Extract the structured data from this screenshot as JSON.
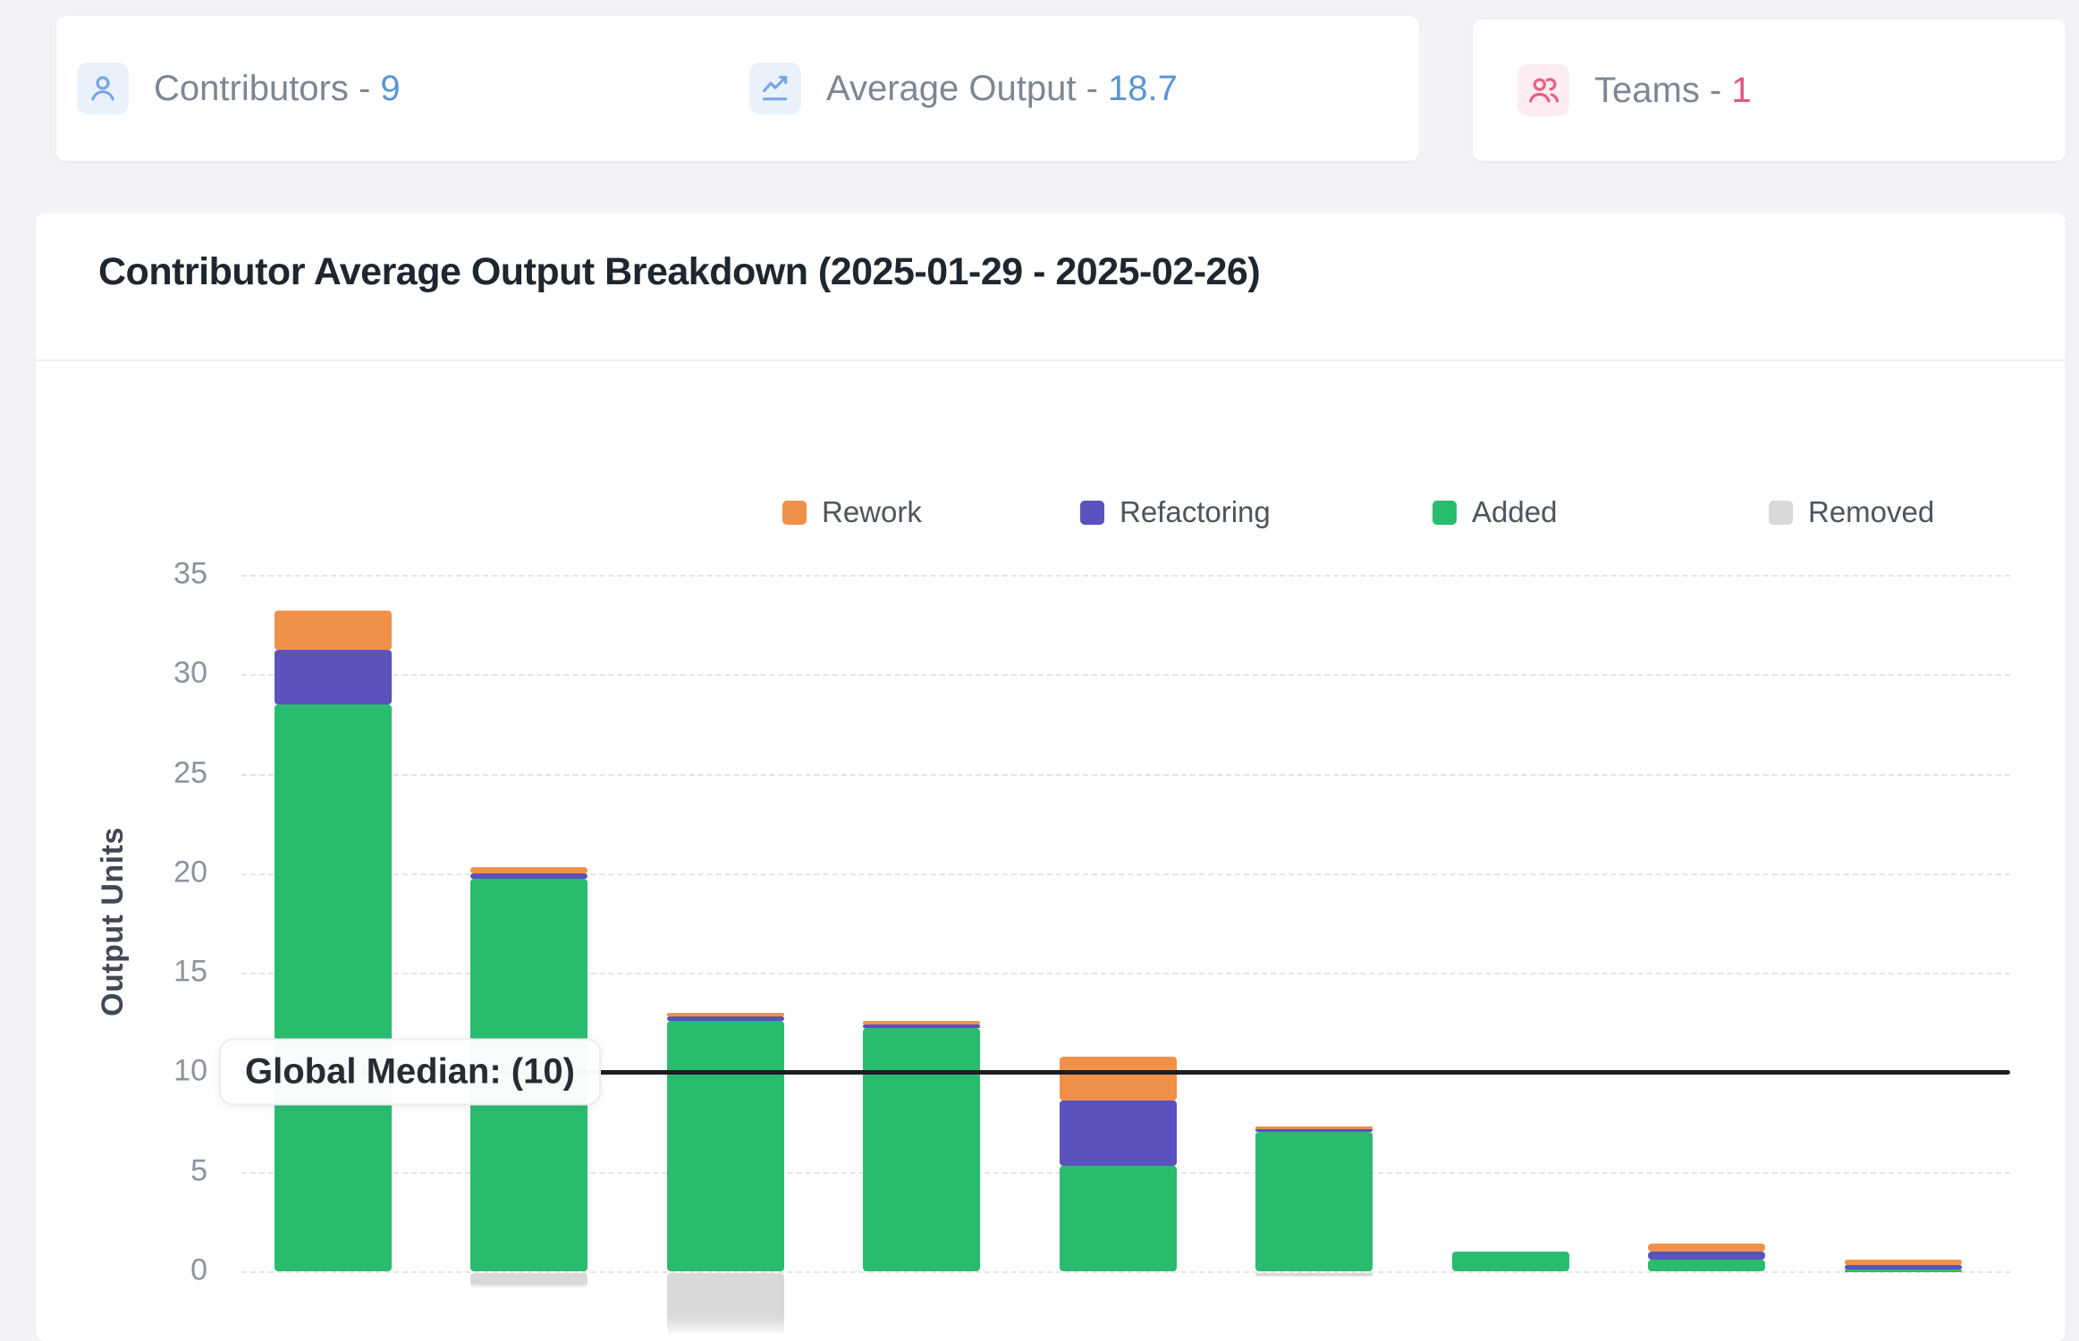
{
  "stat_cards": [
    {
      "label": "Contributors - ",
      "value": "9",
      "value_color": "#5896d6",
      "icon": "user-icon"
    },
    {
      "label": "Average Output - ",
      "value": "18.7",
      "value_color": "#5896d6",
      "icon": "trend-chart-icon"
    },
    {
      "label": "Teams - ",
      "value": "1",
      "value_color": "#e2547e",
      "icon": "team-icon"
    }
  ],
  "chart": {
    "title": "Contributor Average Output Breakdown (2025-01-29 - 2025-02-26)"
  },
  "chart_data": {
    "type": "bar",
    "stacked": true,
    "title": "Contributor Average Output Breakdown (2025-01-29 - 2025-02-26)",
    "ylabel": "Output Units",
    "ylim": [
      -4,
      36
    ],
    "yticks": [
      0,
      5,
      10,
      15,
      20,
      25,
      30,
      35
    ],
    "x_tick_labels_visible": false,
    "num_bars": 9,
    "grid": "dashed-horizontal",
    "legend_position": "top",
    "legend": [
      {
        "name": "Rework",
        "color": "#f0914a"
      },
      {
        "name": "Refactoring",
        "color": "#5a52bd"
      },
      {
        "name": "Added",
        "color": "#2abc6e"
      },
      {
        "name": "Removed",
        "color": "#d9d9db"
      }
    ],
    "series": [
      {
        "name": "Added",
        "color": "#2abc6e",
        "values": [
          28.5,
          19.7,
          12.6,
          12.2,
          5.3,
          7.0,
          1.0,
          0.6,
          0.1
        ]
      },
      {
        "name": "Refactoring",
        "color": "#5a52bd",
        "values": [
          2.7,
          0.3,
          0.2,
          0.2,
          3.3,
          0.2,
          0.0,
          0.4,
          0.2
        ]
      },
      {
        "name": "Rework",
        "color": "#f0914a",
        "values": [
          2.0,
          0.3,
          0.2,
          0.2,
          2.2,
          0.1,
          0.0,
          0.4,
          0.3
        ]
      },
      {
        "name": "Removed",
        "color": "#d9d9db",
        "values": [
          0.0,
          -0.7,
          -3.0,
          0.0,
          0.0,
          -0.2,
          0.0,
          0.0,
          0.0
        ]
      }
    ],
    "annotation": {
      "label": "Global Median: (10)",
      "value": 10,
      "line_color": "#1b1d20"
    }
  }
}
